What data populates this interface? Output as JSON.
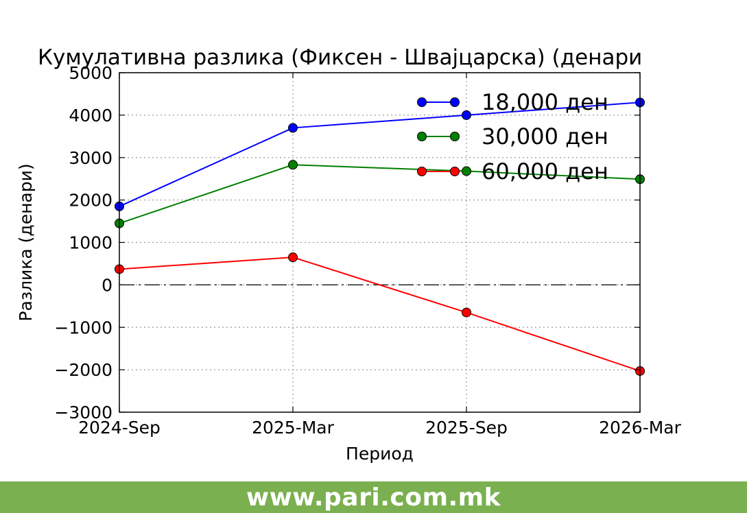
{
  "chart_data": {
    "type": "line",
    "title": "Кумулативна разлика (Фиксен - Швајцарска) (денари",
    "xlabel": "Период",
    "ylabel": "Разлика (денари)",
    "categories": [
      "2024-Sep",
      "2025-Mar",
      "2025-Sep",
      "2026-Mar"
    ],
    "ylim": [
      -3000,
      5000
    ],
    "yticks": [
      5000,
      4000,
      3000,
      2000,
      1000,
      0,
      -1000,
      -2000,
      -3000
    ],
    "ytick_labels": [
      "5000",
      "4000",
      "3000",
      "2000",
      "1000",
      "0",
      "−1000",
      "−2000",
      "−3000"
    ],
    "grid": true,
    "zero_line": true,
    "legend_position": "top-right",
    "series": [
      {
        "name": "18,000 ден",
        "color": "#0000ff",
        "values": [
          1850,
          3700,
          4000,
          4300
        ]
      },
      {
        "name": "30,000 ден",
        "color": "#008000",
        "values": [
          1450,
          2830,
          2680,
          2490
        ]
      },
      {
        "name": "60,000 ден",
        "color": "#ff0000",
        "values": [
          370,
          650,
          -650,
          -2030
        ]
      }
    ]
  },
  "footer": {
    "text": "www.pari.com.mk",
    "color": "#7ab04f"
  }
}
